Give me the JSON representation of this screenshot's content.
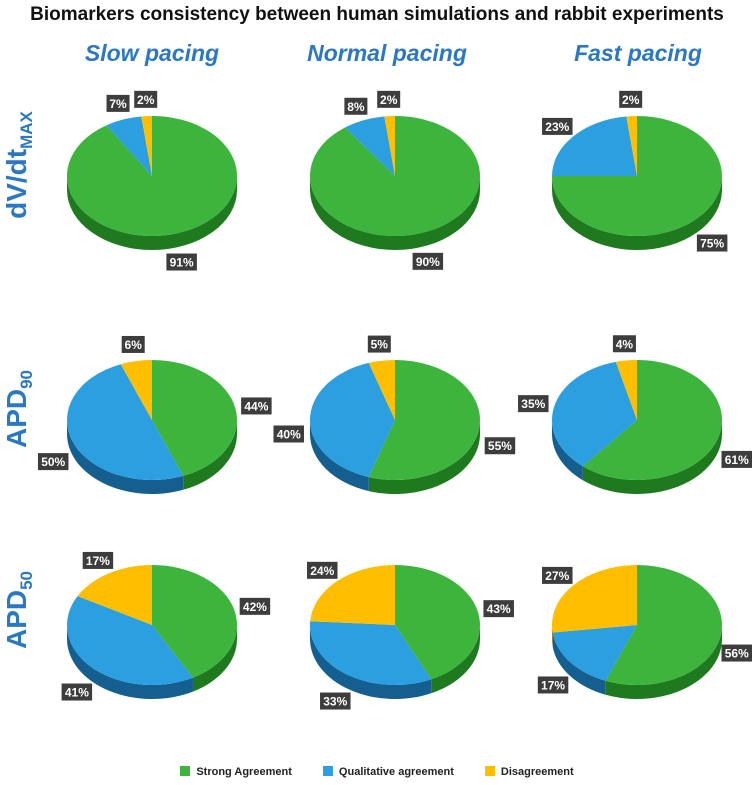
{
  "title": "Biomarkers consistency between human simulations and rabbit experiments",
  "columns": [
    "Slow pacing",
    "Normal pacing",
    "Fast pacing"
  ],
  "rows": [
    {
      "main": "dV/dt",
      "sub": "MAX"
    },
    {
      "main": "APD",
      "sub": "90"
    },
    {
      "main": "APD",
      "sub": "50"
    }
  ],
  "colors": {
    "strong": "#3db53d",
    "strong_dark": "#1f7a1f",
    "qualitative": "#2b9fe0",
    "qualitative_dark": "#145f8f",
    "disagreement": "#ffbf00",
    "disagreement_dark": "#a07800",
    "label_bg": "#3d3d3d"
  },
  "legend": [
    {
      "name": "Strong Agreement",
      "color": "#3db53d"
    },
    {
      "name": "Qualitative agreement",
      "color": "#2b9fe0"
    },
    {
      "name": "Disagreement",
      "color": "#ffbf00"
    }
  ],
  "chart_data": [
    {
      "type": "pie",
      "row": "dV/dtMAX",
      "column": "Slow pacing",
      "categories": [
        "Strong Agreement",
        "Qualitative agreement",
        "Disagreement"
      ],
      "values": [
        91,
        7,
        2
      ],
      "labels": [
        "91%",
        "7%",
        "2%"
      ]
    },
    {
      "type": "pie",
      "row": "dV/dtMAX",
      "column": "Normal pacing",
      "categories": [
        "Strong Agreement",
        "Qualitative agreement",
        "Disagreement"
      ],
      "values": [
        90,
        8,
        2
      ],
      "labels": [
        "90%",
        "8%",
        "2%"
      ]
    },
    {
      "type": "pie",
      "row": "dV/dtMAX",
      "column": "Fast pacing",
      "categories": [
        "Strong Agreement",
        "Qualitative agreement",
        "Disagreement"
      ],
      "values": [
        75,
        23,
        2
      ],
      "labels": [
        "75%",
        "23%",
        "2%"
      ]
    },
    {
      "type": "pie",
      "row": "APD90",
      "column": "Slow pacing",
      "categories": [
        "Strong Agreement",
        "Qualitative agreement",
        "Disagreement"
      ],
      "values": [
        44,
        50,
        6
      ],
      "labels": [
        "44%",
        "50%",
        "6%"
      ]
    },
    {
      "type": "pie",
      "row": "APD90",
      "column": "Normal pacing",
      "categories": [
        "Strong Agreement",
        "Qualitative agreement",
        "Disagreement"
      ],
      "values": [
        55,
        40,
        5
      ],
      "labels": [
        "55%",
        "40%",
        "5%"
      ]
    },
    {
      "type": "pie",
      "row": "APD90",
      "column": "Fast pacing",
      "categories": [
        "Strong Agreement",
        "Qualitative agreement",
        "Disagreement"
      ],
      "values": [
        61,
        35,
        4
      ],
      "labels": [
        "61%",
        "35%",
        "4%"
      ]
    },
    {
      "type": "pie",
      "row": "APD50",
      "column": "Slow pacing",
      "categories": [
        "Strong Agreement",
        "Qualitative agreement",
        "Disagreement"
      ],
      "values": [
        42,
        41,
        17
      ],
      "labels": [
        "42%",
        "41%",
        "17%"
      ]
    },
    {
      "type": "pie",
      "row": "APD50",
      "column": "Normal pacing",
      "categories": [
        "Strong Agreement",
        "Qualitative agreement",
        "Disagreement"
      ],
      "values": [
        43,
        33,
        24
      ],
      "labels": [
        "43%",
        "33%",
        "24%"
      ]
    },
    {
      "type": "pie",
      "row": "APD50",
      "column": "Fast pacing",
      "categories": [
        "Strong Agreement",
        "Qualitative agreement",
        "Disagreement"
      ],
      "values": [
        56,
        17,
        27
      ],
      "labels": [
        "56%",
        "17%",
        "27%"
      ]
    }
  ]
}
